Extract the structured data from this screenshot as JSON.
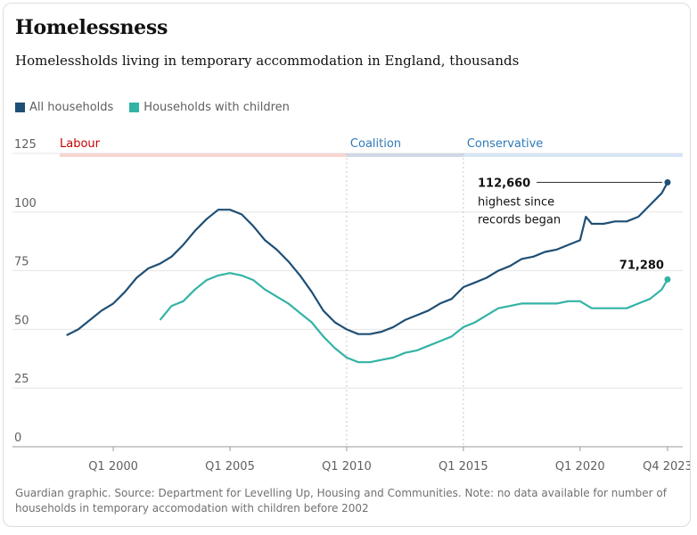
{
  "header": {
    "title": "Homelessness",
    "subtitle": "Homelessholds living in temporary accommodation in England, thousands"
  },
  "footer": {
    "note": "Guardian graphic. Source: Department for Levelling Up, Housing and Communities. Note: no data available for number of households in temporary accomodation with children before 2002"
  },
  "colors": {
    "all_households": "#1f4f75",
    "with_children": "#33b3a6",
    "labour": "#c70000",
    "labour_band": "#f6d5d0",
    "coalition": "#2f7ab9",
    "coalition_band": "#cfd8e6",
    "conservative": "#2f7ab9",
    "conservative_band": "#d6e6f5"
  },
  "chart_data": {
    "type": "line",
    "ylim": [
      0,
      125
    ],
    "xlim": [
      1997.4,
      2024.4
    ],
    "y_ticks": [
      0,
      25,
      50,
      75,
      100,
      125
    ],
    "x_ticks": [
      {
        "x": 2000.0,
        "label": "Q1 2000"
      },
      {
        "x": 2005.0,
        "label": "Q1 2005"
      },
      {
        "x": 2010.0,
        "label": "Q1 2010"
      },
      {
        "x": 2015.0,
        "label": "Q1 2015"
      },
      {
        "x": 2020.0,
        "label": "Q1 2020"
      },
      {
        "x": 2023.75,
        "label": "Q4 2023"
      }
    ],
    "legend": {
      "placement": "top-left",
      "entries": [
        "All households",
        "Households with children"
      ]
    },
    "periods": [
      {
        "name": "Labour",
        "start": 1997.4,
        "end": 2010.0
      },
      {
        "name": "Coalition",
        "start": 2010.0,
        "end": 2015.0
      },
      {
        "name": "Conservative",
        "start": 2015.0,
        "end": 2024.4
      }
    ],
    "series": [
      {
        "name": "All households",
        "x": [
          1998.0,
          1998.5,
          1999.0,
          1999.5,
          2000.0,
          2000.5,
          2001.0,
          2001.5,
          2002.0,
          2002.5,
          2003.0,
          2003.5,
          2004.0,
          2004.5,
          2005.0,
          2005.5,
          2006.0,
          2006.5,
          2007.0,
          2007.5,
          2008.0,
          2008.5,
          2009.0,
          2009.5,
          2010.0,
          2010.5,
          2011.0,
          2011.5,
          2012.0,
          2012.5,
          2013.0,
          2013.5,
          2014.0,
          2014.5,
          2015.0,
          2015.5,
          2016.0,
          2016.5,
          2017.0,
          2017.5,
          2018.0,
          2018.5,
          2019.0,
          2019.5,
          2020.0,
          2020.25,
          2020.5,
          2021.0,
          2021.5,
          2022.0,
          2022.5,
          2023.0,
          2023.5,
          2023.75
        ],
        "values": [
          47.5,
          50,
          54,
          58,
          61,
          66,
          72,
          76,
          78,
          81,
          86,
          92,
          97,
          101,
          101,
          99,
          94,
          88,
          84,
          79,
          73,
          66,
          58,
          53,
          50,
          48,
          48,
          49,
          51,
          54,
          56,
          58,
          61,
          63,
          68,
          70,
          72,
          75,
          77,
          80,
          81,
          83,
          84,
          86,
          88,
          98,
          95,
          95,
          96,
          96,
          98,
          103,
          108,
          112.66
        ]
      },
      {
        "name": "Households with children",
        "x": [
          2002.0,
          2002.5,
          2003.0,
          2003.5,
          2004.0,
          2004.5,
          2005.0,
          2005.5,
          2006.0,
          2006.5,
          2007.0,
          2007.5,
          2008.0,
          2008.5,
          2009.0,
          2009.5,
          2010.0,
          2010.5,
          2011.0,
          2011.5,
          2012.0,
          2012.5,
          2013.0,
          2013.5,
          2014.0,
          2014.5,
          2015.0,
          2015.5,
          2016.0,
          2016.5,
          2017.0,
          2017.5,
          2018.0,
          2018.5,
          2019.0,
          2019.5,
          2020.0,
          2020.5,
          2021.0,
          2021.5,
          2022.0,
          2022.5,
          2023.0,
          2023.5,
          2023.75
        ],
        "values": [
          54,
          60,
          62,
          67,
          71,
          73,
          74,
          73,
          71,
          67,
          64,
          61,
          57,
          53,
          47,
          42,
          38,
          36,
          36,
          37,
          38,
          40,
          41,
          43,
          45,
          47,
          51,
          53,
          56,
          59,
          60,
          61,
          61,
          61,
          61,
          62,
          62,
          59,
          59,
          59,
          59,
          61,
          63,
          67,
          71.28
        ]
      }
    ],
    "annotations": [
      {
        "series": "All households",
        "value_label": "112,660",
        "text": [
          "highest since",
          "records began"
        ]
      },
      {
        "series": "Households with children",
        "value_label": "71,280"
      }
    ]
  }
}
